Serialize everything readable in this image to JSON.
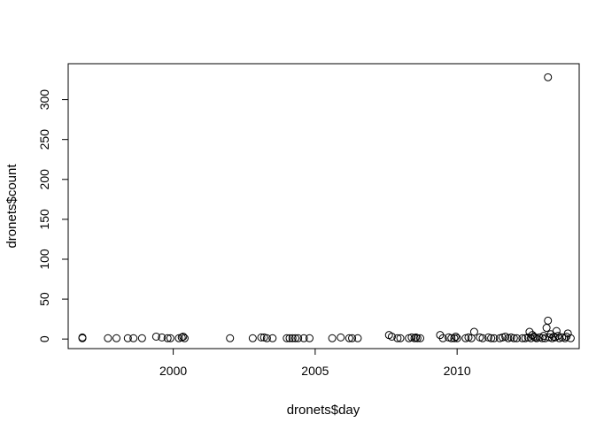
{
  "chart_data": {
    "type": "scatter",
    "title": "",
    "xlabel": "dronets$day",
    "ylabel": "dronets$count",
    "xlim": [
      1996.3,
      2014.3
    ],
    "ylim": [
      -12,
      345
    ],
    "xticks": [
      2000,
      2005,
      2010
    ],
    "xtick_labels": [
      "2000",
      "2005",
      "2010"
    ],
    "yticks": [
      0,
      50,
      100,
      150,
      200,
      250,
      300
    ],
    "ytick_labels": [
      "0",
      "50",
      "100",
      "150",
      "200",
      "250",
      "300"
    ],
    "marker": "open-circle",
    "points": [
      [
        1996.8,
        1
      ],
      [
        1996.8,
        2
      ],
      [
        1997.7,
        1
      ],
      [
        1998.0,
        1
      ],
      [
        1998.4,
        1
      ],
      [
        1998.6,
        1
      ],
      [
        1998.9,
        1
      ],
      [
        1999.4,
        3
      ],
      [
        1999.6,
        2
      ],
      [
        1999.8,
        1
      ],
      [
        1999.9,
        1
      ],
      [
        2000.2,
        1
      ],
      [
        2000.3,
        2
      ],
      [
        2000.35,
        3
      ],
      [
        2000.4,
        1
      ],
      [
        2002.0,
        1
      ],
      [
        2002.8,
        1
      ],
      [
        2003.1,
        2
      ],
      [
        2003.2,
        2
      ],
      [
        2003.3,
        1
      ],
      [
        2003.5,
        1
      ],
      [
        2004.0,
        1
      ],
      [
        2004.1,
        1
      ],
      [
        2004.2,
        1
      ],
      [
        2004.3,
        1
      ],
      [
        2004.4,
        1
      ],
      [
        2004.6,
        1
      ],
      [
        2004.8,
        1
      ],
      [
        2005.6,
        1
      ],
      [
        2005.9,
        2
      ],
      [
        2006.2,
        1
      ],
      [
        2006.3,
        1
      ],
      [
        2006.5,
        1
      ],
      [
        2007.6,
        5
      ],
      [
        2007.7,
        3
      ],
      [
        2007.9,
        1
      ],
      [
        2008.0,
        1
      ],
      [
        2008.3,
        1
      ],
      [
        2008.4,
        2
      ],
      [
        2008.5,
        1
      ],
      [
        2008.55,
        2
      ],
      [
        2008.6,
        1
      ],
      [
        2008.7,
        1
      ],
      [
        2009.4,
        5
      ],
      [
        2009.5,
        1
      ],
      [
        2009.7,
        2
      ],
      [
        2009.8,
        1
      ],
      [
        2009.9,
        1
      ],
      [
        2009.95,
        3
      ],
      [
        2010.0,
        1
      ],
      [
        2010.3,
        1
      ],
      [
        2010.4,
        2
      ],
      [
        2010.5,
        1
      ],
      [
        2010.6,
        9
      ],
      [
        2010.8,
        2
      ],
      [
        2010.9,
        1
      ],
      [
        2011.1,
        2
      ],
      [
        2011.2,
        1
      ],
      [
        2011.3,
        1
      ],
      [
        2011.5,
        1
      ],
      [
        2011.6,
        2
      ],
      [
        2011.7,
        3
      ],
      [
        2011.8,
        1
      ],
      [
        2011.9,
        2
      ],
      [
        2012.0,
        1
      ],
      [
        2012.1,
        1
      ],
      [
        2012.3,
        1
      ],
      [
        2012.4,
        1
      ],
      [
        2012.5,
        2
      ],
      [
        2012.55,
        9
      ],
      [
        2012.6,
        1
      ],
      [
        2012.65,
        5
      ],
      [
        2012.7,
        3
      ],
      [
        2012.75,
        2
      ],
      [
        2012.8,
        1
      ],
      [
        2012.9,
        2
      ],
      [
        2013.0,
        1
      ],
      [
        2013.05,
        4
      ],
      [
        2013.1,
        1
      ],
      [
        2013.15,
        14
      ],
      [
        2013.2,
        23
      ],
      [
        2013.25,
        2
      ],
      [
        2013.3,
        6
      ],
      [
        2013.35,
        1
      ],
      [
        2013.4,
        3
      ],
      [
        2013.45,
        2
      ],
      [
        2013.5,
        10
      ],
      [
        2013.55,
        4
      ],
      [
        2013.6,
        1
      ],
      [
        2013.7,
        2
      ],
      [
        2013.8,
        1
      ],
      [
        2013.85,
        3
      ],
      [
        2013.9,
        7
      ],
      [
        2014.0,
        1
      ],
      [
        2013.2,
        328
      ]
    ]
  }
}
